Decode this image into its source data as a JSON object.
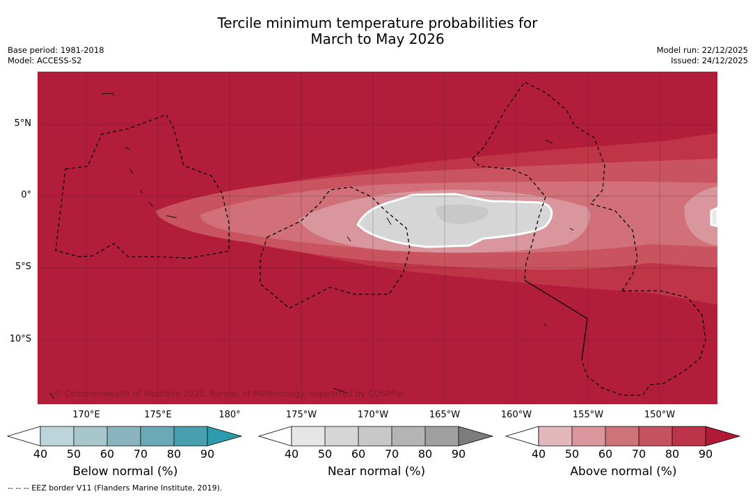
{
  "title": {
    "line1": "Tercile minimum temperature probabilities for",
    "line2": "March to May 2026"
  },
  "meta_left": {
    "base_period": "Base period: 1981-2018",
    "model": "Model: ACCESS-S2"
  },
  "meta_right": {
    "model_run": "Model run: 22/12/2025",
    "issued": "Issued: 24/12/2025"
  },
  "map": {
    "lat_labels": [
      "5°N",
      "0°",
      "5°S",
      "10°S"
    ],
    "lon_labels": [
      "170°E",
      "175°E",
      "180°",
      "175°W",
      "170°W",
      "165°W",
      "160°W",
      "155°W",
      "150°W"
    ],
    "copyright": "© Commonwealth of Australia 2025, Bureau of Meteorology, supported by COSPPac",
    "colors": {
      "above_90": "#b21e3a",
      "above_80": "#c03448",
      "above_70": "#c9545f",
      "above_60": "#d17078",
      "above_50": "#d9969c",
      "near_40": "#d6d6d6",
      "near_50": "#c8c8c8"
    }
  },
  "colorbars": [
    {
      "label": "Below normal (%)",
      "ticks": [
        "40",
        "50",
        "60",
        "70",
        "80",
        "90"
      ],
      "colors": [
        "#ffffff",
        "#bdd4da",
        "#a8c7cd",
        "#8ab5bf",
        "#6aa9b5",
        "#489fb0",
        "#2c9bae"
      ]
    },
    {
      "label": "Near normal (%)",
      "ticks": [
        "40",
        "50",
        "60",
        "70",
        "80",
        "90"
      ],
      "colors": [
        "#ffffff",
        "#e6e6e6",
        "#d6d6d6",
        "#c8c8c8",
        "#b4b4b4",
        "#a0a0a0",
        "#7c7c7c"
      ]
    },
    {
      "label": "Above normal (%)",
      "ticks": [
        "40",
        "50",
        "60",
        "70",
        "80",
        "90"
      ],
      "colors": [
        "#ffffff",
        "#e3b8bd",
        "#d9969c",
        "#ce7479",
        "#c4535f",
        "#bb3448",
        "#b01a36"
      ]
    }
  ],
  "footnote": "-- -- -- EEZ border V11 (Flanders Marine Institute, 2019)."
}
